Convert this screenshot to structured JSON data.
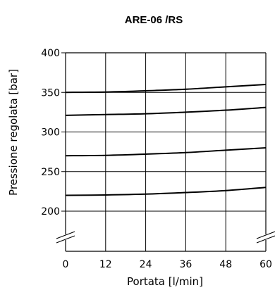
{
  "chart_data": {
    "type": "line",
    "title": "ARE-06 /RS",
    "xlabel": "Portata [l/min]",
    "ylabel": "Pressione regolata [bar]",
    "x_ticks": [
      "0",
      "12",
      "24",
      "36",
      "48",
      "60"
    ],
    "y_ticks": [
      "400",
      "350",
      "300",
      "250",
      "200"
    ],
    "xlim": [
      0,
      60
    ],
    "ylim": [
      200,
      400
    ],
    "y_axis_break": true,
    "grid": true,
    "x": [
      0,
      12,
      24,
      36,
      48,
      60
    ],
    "series": [
      {
        "values": [
          350,
          350.5,
          352,
          354,
          357,
          360
        ]
      },
      {
        "values": [
          321,
          322,
          323,
          325,
          327.5,
          331
        ]
      },
      {
        "values": [
          270,
          270.5,
          272,
          274,
          277,
          280
        ]
      },
      {
        "values": [
          220,
          220.5,
          221.5,
          223.5,
          226,
          230
        ]
      }
    ]
  }
}
